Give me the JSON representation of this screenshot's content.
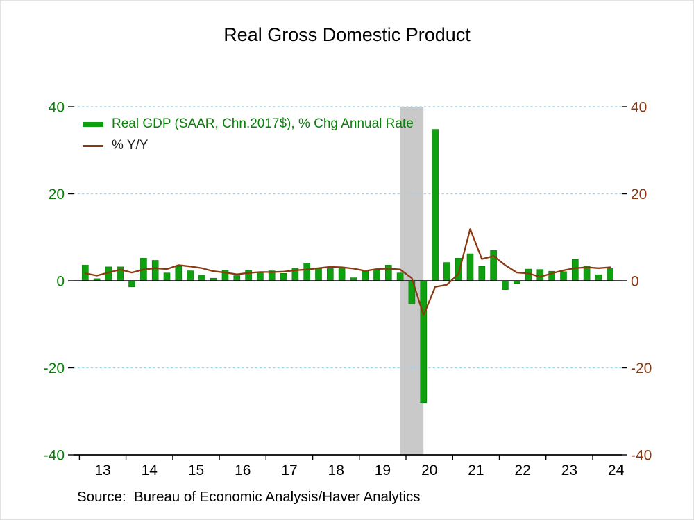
{
  "title": "Real Gross Domestic Product",
  "source_note": "Source:  Bureau of Economic Analysis/Haver Analytics",
  "legend": {
    "items": [
      {
        "label": "Real GDP (SAAR, Chn.2017$), % Chg Annual Rate",
        "swatch": "bar"
      },
      {
        "label": "% Y/Y",
        "swatch": "line"
      }
    ]
  },
  "colors": {
    "bar": "#0fa00f",
    "bar_edge": "#077507",
    "line": "#8a3a12",
    "left_axis_label": "#0a7f0a",
    "right_axis_label": "#8a3a12",
    "x_axis_label": "#000000",
    "grid": "#9fd2ea",
    "recession_band": "#c9c9c9",
    "axis": "#000000",
    "legend_text_primary": "#0a7f0a",
    "legend_text_secondary": "#1a1a1a"
  },
  "chart_data": {
    "type": "bar",
    "title": "Real Gross Domestic Product",
    "legend_position": "top-left",
    "grid": "horizontal-dotted",
    "dual_axis": "mirrored",
    "ylim": [
      -40,
      40
    ],
    "y_ticks": [
      40,
      20,
      0,
      -20,
      -40
    ],
    "x_tick_labels": [
      "13",
      "14",
      "15",
      "16",
      "17",
      "18",
      "19",
      "20",
      "21",
      "22",
      "23",
      "24"
    ],
    "recession_band": {
      "from": "2019Q4",
      "to": "2020Q2"
    },
    "x": [
      "2013Q1",
      "2013Q2",
      "2013Q3",
      "2013Q4",
      "2014Q1",
      "2014Q2",
      "2014Q3",
      "2014Q4",
      "2015Q1",
      "2015Q2",
      "2015Q3",
      "2015Q4",
      "2016Q1",
      "2016Q2",
      "2016Q3",
      "2016Q4",
      "2017Q1",
      "2017Q2",
      "2017Q3",
      "2017Q4",
      "2018Q1",
      "2018Q2",
      "2018Q3",
      "2018Q4",
      "2019Q1",
      "2019Q2",
      "2019Q3",
      "2019Q4",
      "2020Q1",
      "2020Q2",
      "2020Q3",
      "2020Q4",
      "2021Q1",
      "2021Q2",
      "2021Q3",
      "2021Q4",
      "2022Q1",
      "2022Q2",
      "2022Q3",
      "2022Q4",
      "2023Q1",
      "2023Q2",
      "2023Q3",
      "2023Q4",
      "2024Q1",
      "2024Q2"
    ],
    "series": [
      {
        "name": "Real GDP (SAAR, Chn.2017$), % Chg Annual Rate",
        "type": "bar",
        "values": [
          3.6,
          0.5,
          3.2,
          3.2,
          -1.4,
          5.2,
          4.7,
          1.8,
          3.3,
          2.3,
          1.3,
          0.6,
          2.4,
          1.2,
          2.4,
          2.0,
          2.3,
          1.7,
          2.9,
          4.1,
          2.8,
          2.8,
          2.9,
          0.7,
          2.2,
          2.7,
          3.6,
          1.8,
          -5.3,
          -28.0,
          34.8,
          4.2,
          5.2,
          6.2,
          3.3,
          7.0,
          -2.0,
          -0.6,
          2.7,
          2.6,
          2.2,
          2.1,
          4.9,
          3.4,
          1.4,
          2.8
        ]
      },
      {
        "name": "% Y/Y",
        "type": "line",
        "values": [
          1.7,
          1.2,
          1.9,
          2.6,
          1.9,
          2.6,
          2.9,
          2.7,
          3.6,
          3.3,
          2.9,
          2.2,
          1.9,
          1.5,
          1.8,
          2.0,
          2.0,
          2.1,
          2.4,
          2.6,
          2.9,
          3.2,
          3.1,
          2.8,
          2.3,
          2.7,
          2.8,
          2.6,
          0.6,
          -7.9,
          -1.4,
          -0.9,
          1.6,
          11.9,
          5.0,
          5.7,
          3.6,
          1.9,
          1.7,
          0.9,
          1.7,
          2.4,
          2.9,
          3.1,
          2.9,
          3.1
        ]
      }
    ]
  }
}
